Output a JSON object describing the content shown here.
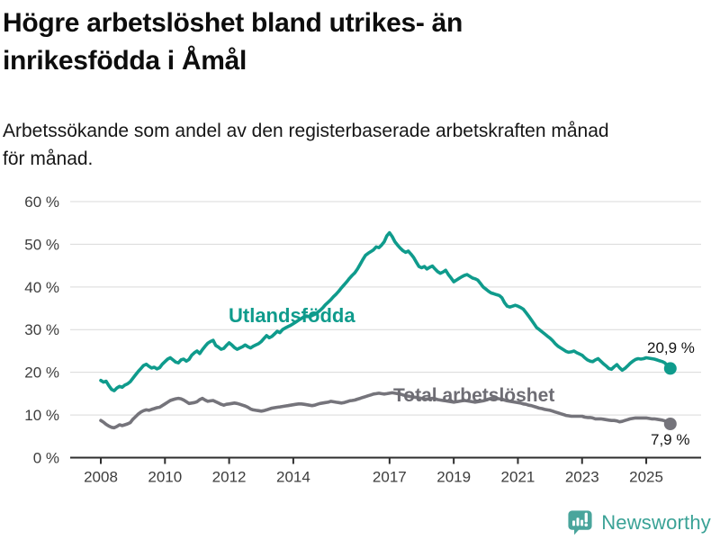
{
  "header": {
    "title_lines": [
      "Högre arbetslöshet bland utrikes- än",
      "inrikesfödda i Åmål"
    ],
    "subtitle_lines": [
      "Arbetssökande som andel av den registerbaserade arbetskraften månad",
      "för månad."
    ]
  },
  "chart_data": {
    "type": "line",
    "title": "Högre arbetslöshet bland utrikes- än inrikesfödda i Åmål",
    "subtitle": "Arbetssökande som andel av den registerbaserade arbetskraften månad för månad.",
    "unit": "%",
    "frequency": "monthly",
    "x_start": "2008-01",
    "x_end": "2025-10",
    "ylim": [
      0,
      60
    ],
    "grid": "horizontal",
    "legend_position": "inline-labels",
    "yticks": [
      {
        "value": 0,
        "label": "0 %"
      },
      {
        "value": 10,
        "label": "10 %"
      },
      {
        "value": 20,
        "label": "20 %"
      },
      {
        "value": 30,
        "label": "30 %"
      },
      {
        "value": 40,
        "label": "40 %"
      },
      {
        "value": 50,
        "label": "50 %"
      },
      {
        "value": 60,
        "label": "60 %"
      }
    ],
    "xticks": [
      {
        "year": 2008,
        "label": "2008"
      },
      {
        "year": 2010,
        "label": "2010"
      },
      {
        "year": 2012,
        "label": "2012"
      },
      {
        "year": 2014,
        "label": "2014"
      },
      {
        "year": 2017,
        "label": "2017"
      },
      {
        "year": 2019,
        "label": "2019"
      },
      {
        "year": 2021,
        "label": "2021"
      },
      {
        "year": 2023,
        "label": "2023"
      },
      {
        "year": 2025,
        "label": "2025"
      }
    ],
    "series": [
      {
        "id": "utlandsfodda",
        "label": "Utlandsfödda",
        "color": "#0f9b8c",
        "end_label": "20,9 %",
        "end_value": 20.9,
        "values": [
          18.1,
          17.7,
          17.9,
          16.9,
          16.0,
          15.7,
          16.3,
          16.7,
          16.5,
          17.0,
          17.3,
          17.8,
          18.6,
          19.4,
          20.2,
          20.9,
          21.6,
          21.9,
          21.4,
          21.0,
          21.2,
          20.8,
          21.1,
          21.9,
          22.5,
          23.1,
          23.4,
          22.9,
          22.4,
          22.2,
          22.9,
          23.1,
          22.6,
          23.0,
          24.0,
          24.6,
          25.0,
          24.4,
          25.3,
          26.1,
          26.8,
          27.2,
          27.5,
          26.3,
          25.9,
          25.4,
          25.6,
          26.3,
          26.9,
          26.4,
          25.8,
          25.4,
          25.7,
          26.0,
          26.4,
          26.0,
          25.7,
          26.1,
          26.4,
          26.7,
          27.2,
          27.9,
          28.6,
          28.1,
          28.4,
          29.0,
          29.6,
          29.3,
          30.0,
          30.4,
          30.7,
          31.0,
          31.4,
          31.8,
          32.2,
          32.6,
          33.0,
          33.2,
          33.0,
          33.3,
          33.6,
          34.0,
          34.5,
          35.1,
          35.8,
          36.4,
          37.0,
          37.7,
          38.3,
          39.0,
          39.8,
          40.5,
          41.2,
          42.0,
          42.7,
          43.3,
          44.2,
          45.3,
          46.4,
          47.4,
          47.9,
          48.3,
          48.7,
          49.4,
          49.2,
          49.8,
          50.6,
          52.0,
          52.7,
          51.8,
          50.6,
          49.8,
          49.1,
          48.5,
          48.1,
          48.4,
          47.7,
          46.9,
          45.8,
          44.8,
          44.5,
          44.8,
          44.2,
          44.6,
          44.9,
          44.2,
          43.6,
          43.2,
          43.5,
          43.9,
          42.9,
          42.1,
          41.2,
          41.6,
          42.0,
          42.4,
          42.7,
          42.9,
          42.5,
          42.1,
          41.9,
          41.6,
          40.8,
          40.0,
          39.5,
          39.0,
          38.6,
          38.4,
          38.2,
          38.0,
          37.5,
          36.3,
          35.5,
          35.3,
          35.5,
          35.7,
          35.5,
          35.2,
          34.8,
          34.0,
          33.2,
          32.3,
          31.4,
          30.5,
          30.0,
          29.5,
          29.0,
          28.5,
          28.0,
          27.4,
          26.7,
          26.1,
          25.7,
          25.3,
          24.9,
          24.7,
          24.8,
          25.0,
          24.6,
          24.3,
          24.0,
          23.4,
          22.9,
          22.6,
          22.5,
          22.9,
          23.2,
          22.6,
          22.0,
          21.5,
          20.9,
          20.7,
          21.3,
          21.8,
          21.1,
          20.5,
          20.9,
          21.5,
          22.1,
          22.6,
          23.0,
          23.2,
          23.1,
          23.2,
          23.4,
          23.3,
          23.2,
          23.1,
          22.9,
          22.7,
          22.5,
          22.2,
          21.4,
          20.9
        ]
      },
      {
        "id": "total",
        "label": "Total arbetslöshet",
        "color": "#75747b",
        "end_label": "7,9 %",
        "end_value": 7.9,
        "values": [
          8.7,
          8.3,
          7.8,
          7.4,
          7.1,
          7.0,
          7.3,
          7.7,
          7.5,
          7.7,
          7.9,
          8.2,
          9.0,
          9.6,
          10.2,
          10.7,
          11.0,
          11.2,
          11.1,
          11.3,
          11.5,
          11.7,
          11.8,
          12.2,
          12.6,
          13.0,
          13.4,
          13.6,
          13.8,
          13.9,
          13.8,
          13.5,
          13.1,
          12.7,
          12.8,
          12.9,
          13.1,
          13.6,
          13.9,
          13.5,
          13.2,
          13.3,
          13.4,
          13.1,
          12.8,
          12.5,
          12.3,
          12.5,
          12.6,
          12.7,
          12.8,
          12.7,
          12.5,
          12.3,
          12.1,
          11.8,
          11.4,
          11.2,
          11.1,
          11.0,
          10.9,
          11.0,
          11.2,
          11.4,
          11.6,
          11.7,
          11.8,
          11.9,
          12.0,
          12.1,
          12.2,
          12.3,
          12.4,
          12.5,
          12.6,
          12.6,
          12.5,
          12.4,
          12.3,
          12.2,
          12.3,
          12.5,
          12.7,
          12.8,
          12.9,
          13.0,
          13.2,
          13.1,
          13.0,
          12.9,
          12.8,
          12.9,
          13.1,
          13.3,
          13.4,
          13.5,
          13.7,
          13.9,
          14.1,
          14.3,
          14.5,
          14.7,
          14.9,
          15.0,
          15.1,
          15.0,
          14.9,
          15.0,
          15.1,
          15.2,
          15.1,
          15.0,
          14.9,
          14.7,
          14.5,
          14.4,
          14.3,
          14.2,
          14.1,
          14.0,
          13.9,
          13.8,
          13.7,
          13.8,
          13.9,
          13.8,
          13.6,
          13.5,
          13.4,
          13.3,
          13.2,
          13.1,
          13.0,
          13.1,
          13.2,
          13.3,
          13.4,
          13.3,
          13.2,
          13.1,
          13.0,
          13.1,
          13.2,
          13.3,
          13.5,
          13.7,
          13.9,
          14.0,
          13.9,
          13.8,
          13.7,
          13.5,
          13.3,
          13.2,
          13.1,
          13.0,
          12.9,
          12.8,
          12.6,
          12.5,
          12.3,
          12.2,
          12.0,
          11.8,
          11.6,
          11.5,
          11.3,
          11.2,
          11.1,
          10.9,
          10.7,
          10.5,
          10.3,
          10.1,
          9.9,
          9.8,
          9.7,
          9.7,
          9.7,
          9.7,
          9.7,
          9.5,
          9.4,
          9.4,
          9.3,
          9.1,
          9.1,
          9.1,
          9.0,
          8.9,
          8.8,
          8.7,
          8.7,
          8.6,
          8.4,
          8.5,
          8.7,
          8.9,
          9.1,
          9.2,
          9.3,
          9.3,
          9.3,
          9.3,
          9.3,
          9.2,
          9.1,
          9.1,
          9.0,
          8.9,
          8.8,
          8.6,
          8.2,
          7.9
        ]
      }
    ]
  },
  "branding": {
    "logo_text": "Newsworthy",
    "logo_icon": "speech-bubble-bar-chart-exclamation",
    "logo_color": "#4aa59c",
    "wordmark_color": "#3aa296"
  },
  "colors": {
    "background": "#ffffff",
    "grid": "#d9d9d9",
    "axis": "#2e2e2e",
    "tick_label": "#3d3d3d",
    "title": "#0d0d0d"
  }
}
